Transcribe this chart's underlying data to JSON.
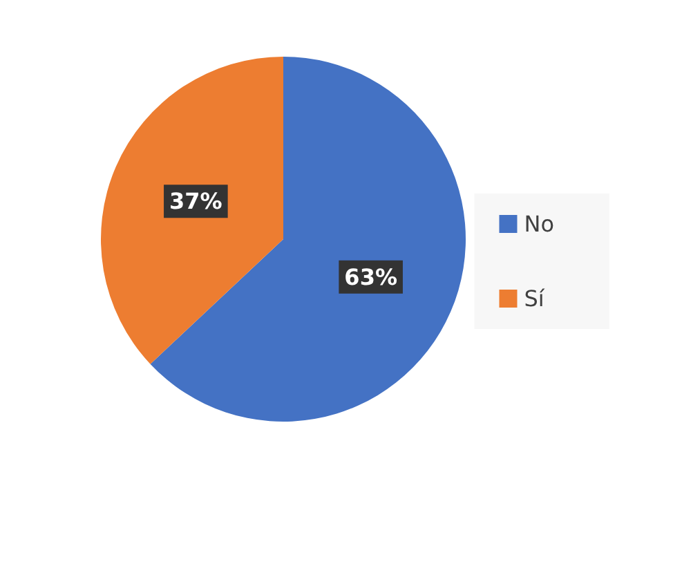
{
  "chart_data": {
    "type": "pie",
    "categories": [
      "No",
      "Sí"
    ],
    "values": [
      63,
      37
    ],
    "colors": [
      "#4472c4",
      "#ed7d31"
    ],
    "value_labels": [
      "63%",
      "37%"
    ],
    "legend": "right"
  }
}
